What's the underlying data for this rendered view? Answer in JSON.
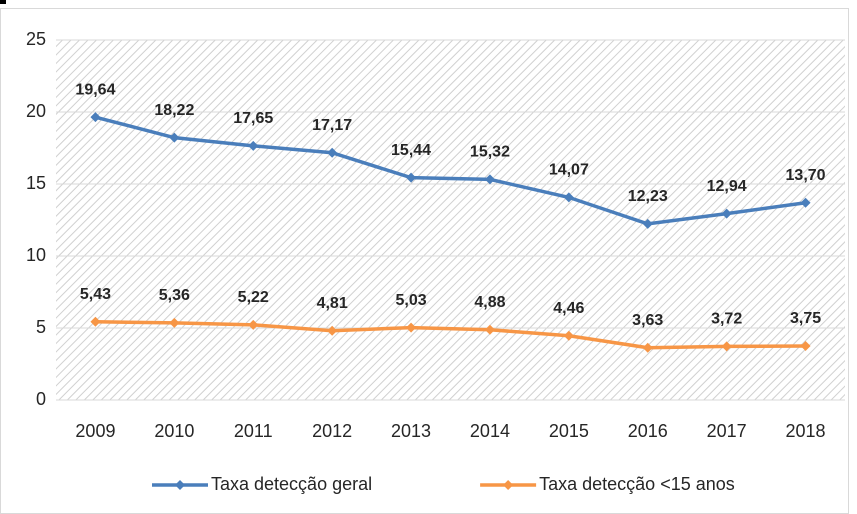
{
  "chart_data": {
    "type": "line",
    "categories": [
      "2009",
      "2010",
      "2011",
      "2012",
      "2013",
      "2014",
      "2015",
      "2016",
      "2017",
      "2018"
    ],
    "series": [
      {
        "name": "Taxa detecção geral",
        "color": "#4a7ebb",
        "values": [
          19.64,
          18.22,
          17.65,
          17.17,
          15.44,
          15.32,
          14.07,
          12.23,
          12.94,
          13.7
        ],
        "value_labels": [
          "19,64",
          "18,22",
          "17,65",
          "17,17",
          "15,44",
          "15,32",
          "14,07",
          "12,23",
          "12,94",
          "13,70"
        ]
      },
      {
        "name": "Taxa detecção <15 anos",
        "color": "#f79646",
        "values": [
          5.43,
          5.36,
          5.22,
          4.81,
          5.03,
          4.88,
          4.46,
          3.63,
          3.72,
          3.75
        ],
        "value_labels": [
          "5,43",
          "5,36",
          "5,22",
          "4,81",
          "5,03",
          "4,88",
          "4,46",
          "3,63",
          "3,72",
          "3,75"
        ]
      }
    ],
    "ylim": [
      0,
      25
    ],
    "yticks": [
      0,
      5,
      10,
      15,
      20,
      25
    ],
    "grid": true,
    "legend": "bottom"
  }
}
